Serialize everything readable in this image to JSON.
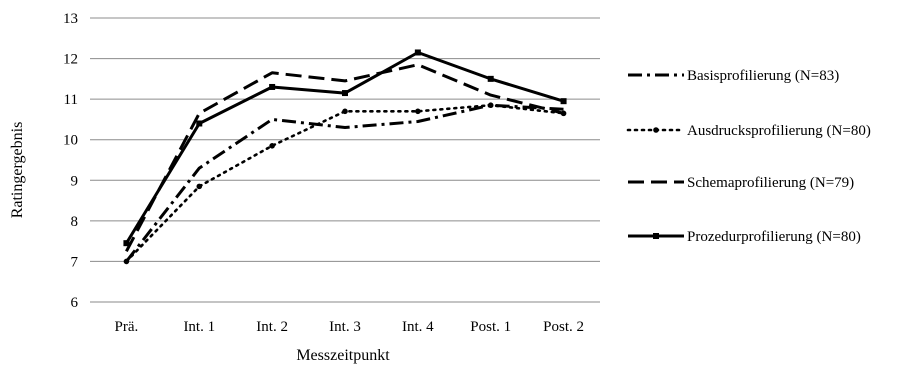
{
  "chart_data": {
    "type": "line",
    "categories": [
      "Prä.",
      "Int. 1",
      "Int. 2",
      "Int. 3",
      "Int. 4",
      "Post. 1",
      "Post. 2"
    ],
    "xlabel": "Messzeitpunkt",
    "ylabel": "Ratingergebnis",
    "ylim": [
      6,
      13
    ],
    "yticks": [
      "6",
      "7",
      "8",
      "9",
      "10",
      "11",
      "12",
      "13"
    ],
    "grid": "horizontal",
    "legend_position": "right",
    "series": [
      {
        "name": "Basisprofilierung (N=83)",
        "style": "dashdot",
        "marker": "none",
        "color": "#000000",
        "values": [
          7.0,
          9.3,
          10.5,
          10.3,
          10.45,
          10.85,
          10.75
        ]
      },
      {
        "name": "Ausdrucksprofilierung (N=80)",
        "style": "dotted",
        "marker": "circle",
        "color": "#000000",
        "values": [
          7.0,
          8.85,
          9.85,
          10.7,
          10.7,
          10.85,
          10.65
        ]
      },
      {
        "name": "Schemaprofilierung (N=79)",
        "style": "dashed",
        "marker": "none",
        "color": "#000000",
        "values": [
          7.25,
          10.65,
          11.65,
          11.45,
          11.85,
          11.1,
          10.65
        ]
      },
      {
        "name": "Prozedurprofilierung (N=80)",
        "style": "solid",
        "marker": "square",
        "color": "#000000",
        "values": [
          7.45,
          10.4,
          11.3,
          11.15,
          12.15,
          11.5,
          10.95
        ]
      }
    ]
  }
}
